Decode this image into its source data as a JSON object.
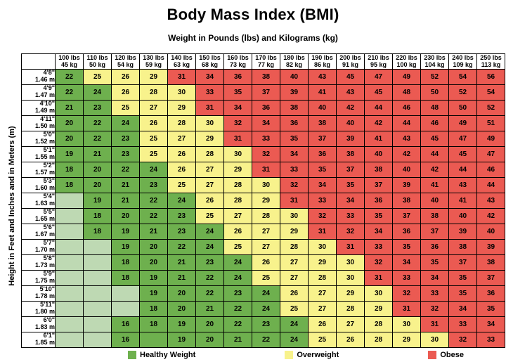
{
  "title": "Body Mass Index (BMI)",
  "subtitle": "Weight in Pounds (lbs) and Kilograms (kg)",
  "ylabel": "Height in Feet and Inches and in Meters (m)",
  "colors": {
    "healthy": "#6eb04e",
    "overweight": "#f8f28c",
    "obese": "#eb5a52",
    "empty": "#bed9b3"
  },
  "legend": [
    {
      "label": "Healthy Weight",
      "color_key": "healthy"
    },
    {
      "label": "Overweight",
      "color_key": "overweight"
    },
    {
      "label": "Obese",
      "color_key": "obese"
    }
  ],
  "chart_data": {
    "type": "heatmap",
    "title": "Body Mass Index (BMI)",
    "xlabel": "Weight in Pounds (lbs) and Kilograms (kg)",
    "ylabel": "Height in Feet and Inches and in Meters (m)",
    "value_rule": {
      "healthy_max": 24,
      "overweight_max": 30,
      "obese_min": 31
    },
    "columns": [
      {
        "lbs": "100 lbs",
        "kg": "45 kg"
      },
      {
        "lbs": "110 lbs",
        "kg": "50 kg"
      },
      {
        "lbs": "120 lbs",
        "kg": "54 kg"
      },
      {
        "lbs": "130 lbs",
        "kg": "59 kg"
      },
      {
        "lbs": "140 lbs",
        "kg": "63 kg"
      },
      {
        "lbs": "150 lbs",
        "kg": "68 kg"
      },
      {
        "lbs": "160 lbs",
        "kg": "73 kg"
      },
      {
        "lbs": "170 lbs",
        "kg": "77 kg"
      },
      {
        "lbs": "180 lbs",
        "kg": "82 kg"
      },
      {
        "lbs": "190 lbs",
        "kg": "86 kg"
      },
      {
        "lbs": "200 lbs",
        "kg": "91 kg"
      },
      {
        "lbs": "210 lbs",
        "kg": "95 kg"
      },
      {
        "lbs": "220 lbs",
        "kg": "100 kg"
      },
      {
        "lbs": "230 lbs",
        "kg": "104 kg"
      },
      {
        "lbs": "240 lbs",
        "kg": "109 kg"
      },
      {
        "lbs": "250 lbs",
        "kg": "113 kg"
      }
    ],
    "rows": [
      {
        "ft": "4'8\"",
        "m": "1.46 m",
        "values": [
          22,
          25,
          26,
          29,
          31,
          34,
          36,
          38,
          40,
          43,
          45,
          47,
          49,
          52,
          54,
          56
        ]
      },
      {
        "ft": "4'9\"",
        "m": "1.47 m",
        "values": [
          22,
          24,
          26,
          28,
          30,
          33,
          35,
          37,
          39,
          41,
          43,
          45,
          48,
          50,
          52,
          54
        ]
      },
      {
        "ft": "4'10\"",
        "m": "1.49 m",
        "values": [
          21,
          23,
          25,
          27,
          29,
          31,
          34,
          36,
          38,
          40,
          42,
          44,
          46,
          48,
          50,
          52
        ]
      },
      {
        "ft": "4'11\"",
        "m": "1.50 m",
        "values": [
          20,
          22,
          24,
          26,
          28,
          30,
          32,
          34,
          36,
          38,
          40,
          42,
          44,
          46,
          49,
          51
        ]
      },
      {
        "ft": "5'0\"",
        "m": "1.52 m",
        "values": [
          20,
          22,
          23,
          25,
          27,
          29,
          31,
          33,
          35,
          37,
          39,
          41,
          43,
          45,
          47,
          49
        ]
      },
      {
        "ft": "5'1\"",
        "m": "1.55 m",
        "values": [
          19,
          21,
          23,
          25,
          26,
          28,
          30,
          32,
          34,
          36,
          38,
          40,
          42,
          44,
          45,
          47
        ]
      },
      {
        "ft": "5'2\"",
        "m": "1.57 m",
        "values": [
          18,
          20,
          22,
          24,
          26,
          27,
          29,
          31,
          33,
          35,
          37,
          38,
          40,
          42,
          44,
          46
        ]
      },
      {
        "ft": "5'3\"",
        "m": "1.60 m",
        "values": [
          18,
          20,
          21,
          23,
          25,
          27,
          28,
          30,
          32,
          34,
          35,
          37,
          39,
          41,
          43,
          44
        ]
      },
      {
        "ft": "5'4\"",
        "m": "1.63 m",
        "values": [
          null,
          19,
          21,
          22,
          24,
          26,
          28,
          29,
          31,
          33,
          34,
          36,
          38,
          40,
          41,
          43
        ]
      },
      {
        "ft": "5'5\"",
        "m": "1.65 m",
        "values": [
          null,
          18,
          20,
          22,
          23,
          25,
          27,
          28,
          30,
          32,
          33,
          35,
          37,
          38,
          40,
          42
        ]
      },
      {
        "ft": "5'6\"",
        "m": "1.67 m",
        "values": [
          null,
          18,
          19,
          21,
          23,
          24,
          26,
          27,
          29,
          31,
          32,
          34,
          36,
          37,
          39,
          40
        ]
      },
      {
        "ft": "5'7\"",
        "m": "1.70 m",
        "values": [
          null,
          null,
          19,
          20,
          22,
          24,
          25,
          27,
          28,
          30,
          31,
          33,
          35,
          36,
          38,
          39
        ]
      },
      {
        "ft": "5'8\"",
        "m": "1.73 m",
        "values": [
          null,
          null,
          18,
          20,
          21,
          23,
          24,
          26,
          27,
          29,
          30,
          32,
          34,
          35,
          37,
          38
        ]
      },
      {
        "ft": "5'9\"",
        "m": "1.75 m",
        "values": [
          null,
          null,
          18,
          19,
          21,
          22,
          24,
          25,
          27,
          28,
          30,
          31,
          33,
          34,
          35,
          37
        ]
      },
      {
        "ft": "5'10\"",
        "m": "1.78 m",
        "values": [
          null,
          null,
          null,
          19,
          20,
          22,
          23,
          24,
          26,
          27,
          29,
          30,
          32,
          33,
          35,
          36
        ]
      },
      {
        "ft": "5'11\"",
        "m": "1.80 m",
        "values": [
          null,
          null,
          null,
          18,
          20,
          21,
          22,
          24,
          25,
          27,
          28,
          29,
          31,
          32,
          34,
          35
        ]
      },
      {
        "ft": "6'0\"",
        "m": "1.83 m",
        "values": [
          null,
          null,
          16,
          18,
          19,
          20,
          22,
          23,
          24,
          26,
          27,
          28,
          30,
          31,
          33,
          34
        ]
      },
      {
        "ft": "6'1\"",
        "m": "1.85 m",
        "values": [
          null,
          null,
          16,
          "",
          19,
          20,
          21,
          22,
          24,
          25,
          26,
          28,
          29,
          30,
          32,
          33
        ]
      }
    ],
    "legend_entries": [
      "Healthy Weight",
      "Overweight",
      "Obese"
    ],
    "legend_position": "bottom"
  }
}
